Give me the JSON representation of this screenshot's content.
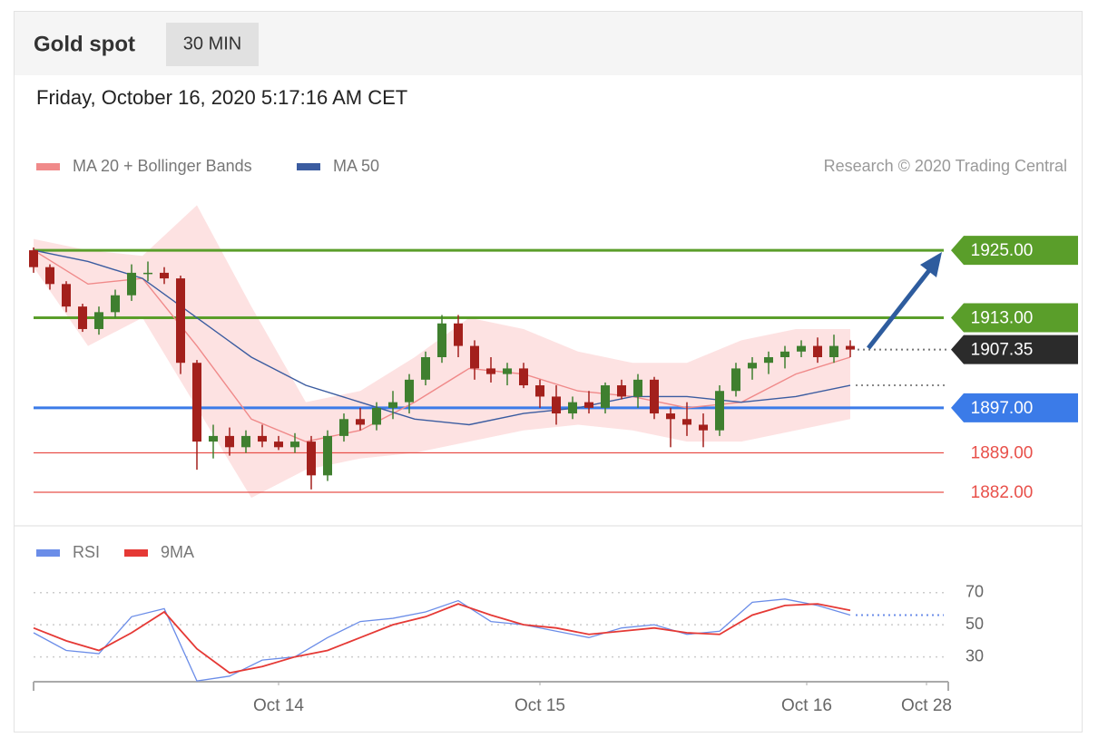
{
  "chart_data": [
    {
      "type": "candlestick",
      "title": "Gold spot",
      "timeframe": "30 MIN",
      "subtitle": "Friday, October 16, 2020 5:17:16 AM CET",
      "credit": "Research © 2020 Trading Central",
      "xlim": [
        0,
        168
      ],
      "xticks": [
        {
          "value": 45,
          "label": "Oct 14"
        },
        {
          "value": 93,
          "label": "Oct 15"
        },
        {
          "value": 142,
          "label": "Oct 16"
        },
        {
          "value": 164,
          "label": "Oct 28"
        }
      ],
      "ylim": [
        1877,
        1935
      ],
      "x": [
        0,
        3,
        6,
        9,
        12,
        15,
        18,
        21,
        24,
        27,
        30,
        33,
        36,
        39,
        42,
        45,
        48,
        51,
        54,
        57,
        60,
        63,
        66,
        69,
        72,
        75,
        78,
        81,
        84,
        87,
        90,
        93,
        96,
        99,
        102,
        105,
        108,
        111,
        114,
        117,
        120,
        123,
        126,
        129,
        132,
        135,
        138,
        141,
        144,
        147,
        150
      ],
      "open": [
        1925,
        1922,
        1919,
        1915,
        1911,
        1914,
        1917,
        1921,
        1921,
        1920,
        1905,
        1891,
        1892,
        1890,
        1892,
        1891,
        1890,
        1891,
        1885,
        1892,
        1895,
        1894,
        1897,
        1898,
        1902,
        1906,
        1912,
        1908,
        1904,
        1903,
        1904,
        1901,
        1899,
        1896,
        1898,
        1897,
        1901,
        1899,
        1902,
        1896,
        1895,
        1894,
        1893,
        1900,
        1904,
        1905,
        1906,
        1907,
        1908,
        1906,
        1908
      ],
      "high": [
        1925.5,
        1922.5,
        1919.5,
        1915.5,
        1915,
        1918,
        1922.5,
        1923,
        1922,
        1920.5,
        1905.5,
        1894,
        1893.5,
        1893,
        1894,
        1892,
        1892.5,
        1892,
        1893,
        1896,
        1897,
        1898,
        1900,
        1903,
        1907,
        1913.5,
        1913.5,
        1909,
        1906,
        1905,
        1905,
        1902,
        1901,
        1899,
        1900,
        1901.5,
        1902,
        1903,
        1902.5,
        1897,
        1898,
        1896,
        1901,
        1905,
        1906,
        1907,
        1908,
        1909,
        1909.5,
        1910,
        1909
      ],
      "low": [
        1921,
        1918,
        1914,
        1910.5,
        1910,
        1913,
        1916,
        1919.5,
        1919,
        1903,
        1886,
        1888,
        1888.5,
        1889,
        1890,
        1889.5,
        1889,
        1882.5,
        1884,
        1891,
        1893,
        1893,
        1895,
        1896,
        1901,
        1905,
        1906,
        1902,
        1901.5,
        1901,
        1900.5,
        1897,
        1894,
        1895,
        1896,
        1896,
        1898.5,
        1897,
        1895,
        1890,
        1892,
        1890,
        1892,
        1899,
        1902,
        1903,
        1904,
        1906,
        1905,
        1905,
        1906
      ],
      "close": [
        1922,
        1919,
        1915,
        1911,
        1914,
        1917,
        1921,
        1921,
        1920,
        1905,
        1891,
        1892,
        1890,
        1892,
        1891,
        1890,
        1891,
        1885,
        1892,
        1895,
        1894,
        1897,
        1898,
        1902,
        1906,
        1912,
        1908,
        1904,
        1903,
        1904,
        1901,
        1899,
        1896,
        1898,
        1897,
        1901,
        1899,
        1902,
        1896,
        1895,
        1894,
        1893,
        1900,
        1904,
        1905,
        1906,
        1907,
        1908,
        1906,
        1908,
        1907.35
      ],
      "colors": {
        "up": "#3f7f2f",
        "down": "#a3201c"
      },
      "indicators": {
        "x": [
          0,
          10,
          20,
          30,
          40,
          50,
          60,
          70,
          80,
          90,
          100,
          110,
          120,
          130,
          140,
          150
        ],
        "series": [
          {
            "name": "MA 20 + Bollinger Bands",
            "color": "#f08a8a",
            "band_color": "#fde2e2",
            "values": [
              1925,
              1919,
              1920,
              1908,
              1895,
              1891,
              1893,
              1898,
              1904,
              1903,
              1900,
              1899,
              1897,
              1898,
              1903,
              1906
            ],
            "upper": [
              1927,
              1925,
              1924,
              1933,
              1915,
              1898,
              1900,
              1906,
              1913,
              1911,
              1907,
              1905,
              1905,
              1909,
              1911,
              1911
            ],
            "lower": [
              1922,
              1908,
              1913,
              1897,
              1881,
              1886,
              1888,
              1889,
              1891,
              1893,
              1894,
              1893,
              1891,
              1891,
              1893,
              1895
            ]
          },
          {
            "name": "MA 50",
            "color": "#3b5ca0",
            "values": [
              1925,
              1923,
              1920,
              1913,
              1906,
              1901,
              1898,
              1895,
              1894,
              1896,
              1897,
              1899,
              1899,
              1898,
              1899,
              1901
            ]
          }
        ]
      },
      "levels": {
        "values": [
          1925,
          1913,
          1907.35,
          1897,
          1889,
          1882
        ],
        "value_labels": [
          "1925.00",
          "1913.00",
          "1907.35",
          "1897.00",
          "1889.00",
          "1882.00"
        ],
        "colors": [
          "#5a9e2a",
          "#5a9e2a",
          "#2b2b2b",
          "#3b7be8",
          "#e8504a",
          "#e8504a"
        ],
        "tags": [
          true,
          true,
          true,
          true,
          false,
          false
        ],
        "line_styles": [
          "solid",
          "solid",
          "dotted",
          "solid",
          "thin",
          "thin"
        ]
      }
    },
    {
      "type": "line",
      "ylim": [
        10,
        80
      ],
      "yticks": [
        30,
        50,
        70
      ],
      "x": [
        0,
        6,
        12,
        18,
        24,
        30,
        36,
        42,
        48,
        54,
        60,
        66,
        72,
        78,
        84,
        90,
        96,
        102,
        108,
        114,
        120,
        126,
        132,
        138,
        144,
        150
      ],
      "series": [
        {
          "name": "RSI",
          "color": "#6b8de8",
          "values": [
            45,
            34,
            32,
            55,
            60,
            15,
            18,
            28,
            30,
            42,
            52,
            54,
            58,
            65,
            52,
            50,
            46,
            42,
            48,
            50,
            44,
            46,
            64,
            66,
            62,
            56
          ]
        },
        {
          "name": "9MA",
          "color": "#e53935",
          "values": [
            48,
            40,
            34,
            45,
            58,
            35,
            20,
            24,
            30,
            34,
            42,
            50,
            55,
            63,
            56,
            50,
            48,
            44,
            46,
            48,
            45,
            44,
            56,
            62,
            63,
            59
          ]
        }
      ]
    }
  ]
}
